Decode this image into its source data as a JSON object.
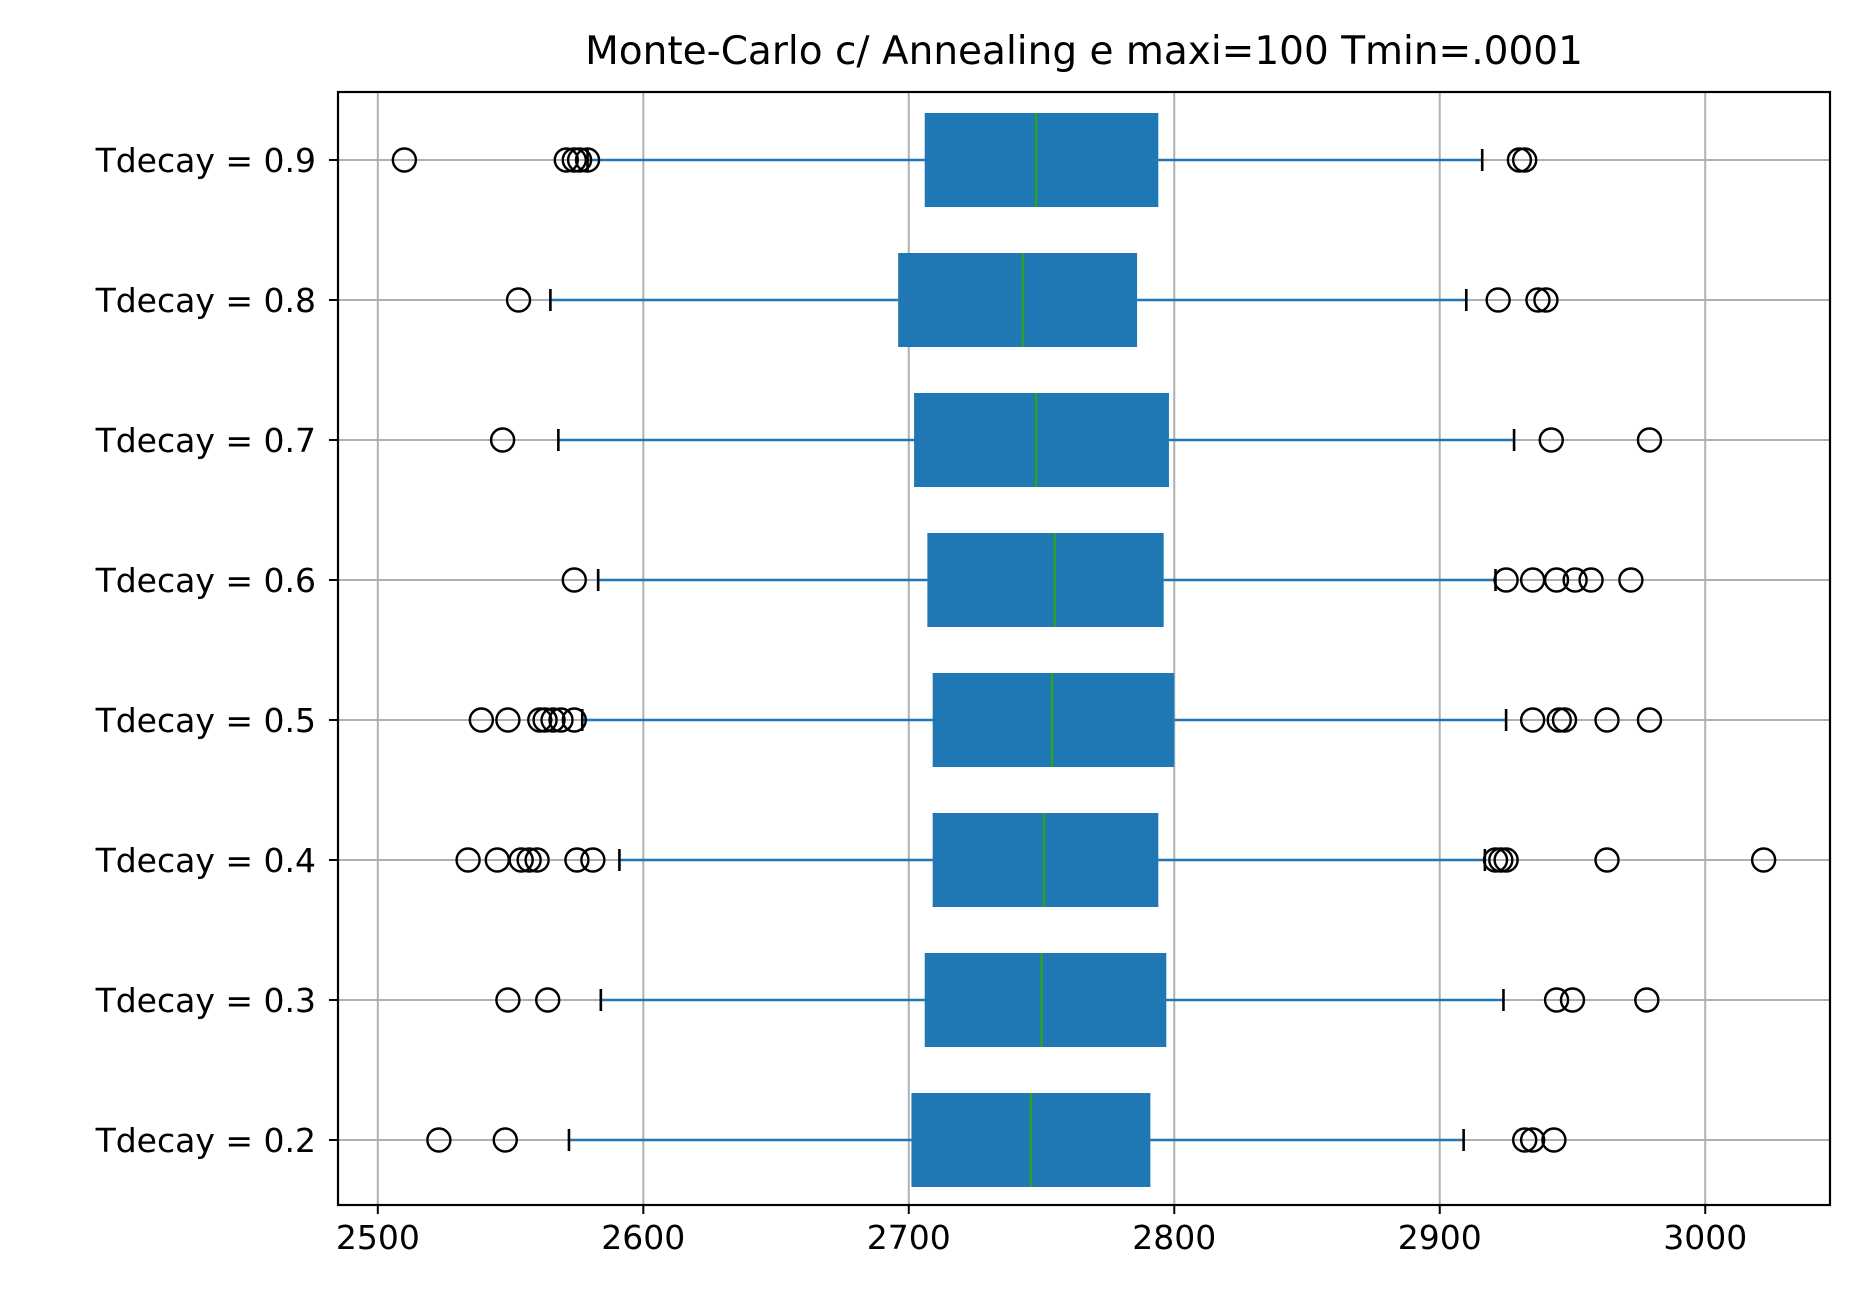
{
  "chart_data": {
    "type": "boxplot",
    "orientation": "horizontal",
    "title": "Monte-Carlo c/ Annealing e maxi=100 Tmin=.0001",
    "xlabel": "",
    "ylabel": "",
    "xlim": [
      2485,
      3047
    ],
    "xticks": [
      2500,
      2600,
      2700,
      2800,
      2900,
      3000
    ],
    "grid": true,
    "colors": {
      "box": "#1f77b4",
      "median": "#2ca02c",
      "whisker": "#1f77b4",
      "flier": "#000000",
      "grid": "#b0b0b0"
    },
    "categories": [
      "Tdecay = 0.9",
      "Tdecay = 0.8",
      "Tdecay = 0.7",
      "Tdecay = 0.6",
      "Tdecay = 0.5",
      "Tdecay = 0.4",
      "Tdecay = 0.3",
      "Tdecay = 0.2"
    ],
    "boxes": [
      {
        "label": "Tdecay = 0.9",
        "whislo": 2579,
        "q1": 2706,
        "med": 2748,
        "q3": 2794,
        "whishi": 2916,
        "fliers": [
          2510,
          2571,
          2574,
          2576,
          2579,
          2930,
          2932
        ]
      },
      {
        "label": "Tdecay = 0.8",
        "whislo": 2565,
        "q1": 2696,
        "med": 2743,
        "q3": 2786,
        "whishi": 2910,
        "fliers": [
          2553,
          2922,
          2937,
          2940
        ]
      },
      {
        "label": "Tdecay = 0.7",
        "whislo": 2568,
        "q1": 2702,
        "med": 2748,
        "q3": 2798,
        "whishi": 2928,
        "fliers": [
          2547,
          2942,
          2979
        ]
      },
      {
        "label": "Tdecay = 0.6",
        "whislo": 2583,
        "q1": 2707,
        "med": 2755,
        "q3": 2796,
        "whishi": 2921,
        "fliers": [
          2574,
          2925,
          2935,
          2944,
          2951,
          2957,
          2972
        ]
      },
      {
        "label": "Tdecay = 0.5",
        "whislo": 2577,
        "q1": 2709,
        "med": 2754,
        "q3": 2800,
        "whishi": 2925,
        "fliers": [
          2539,
          2549,
          2561,
          2563,
          2566,
          2569,
          2574,
          2935,
          2945,
          2947,
          2963,
          2979
        ]
      },
      {
        "label": "Tdecay = 0.4",
        "whislo": 2591,
        "q1": 2709,
        "med": 2751,
        "q3": 2794,
        "whishi": 2917,
        "fliers": [
          2534,
          2545,
          2554,
          2557,
          2560,
          2575,
          2581,
          2921,
          2923,
          2925,
          2963,
          3022
        ]
      },
      {
        "label": "Tdecay = 0.3",
        "whislo": 2584,
        "q1": 2706,
        "med": 2750,
        "q3": 2797,
        "whishi": 2924,
        "fliers": [
          2549,
          2564,
          2944,
          2950,
          2978
        ]
      },
      {
        "label": "Tdecay = 0.2",
        "whislo": 2572,
        "q1": 2701,
        "med": 2746,
        "q3": 2791,
        "whishi": 2909,
        "fliers": [
          2523,
          2548,
          2932,
          2935,
          2943
        ]
      }
    ]
  }
}
